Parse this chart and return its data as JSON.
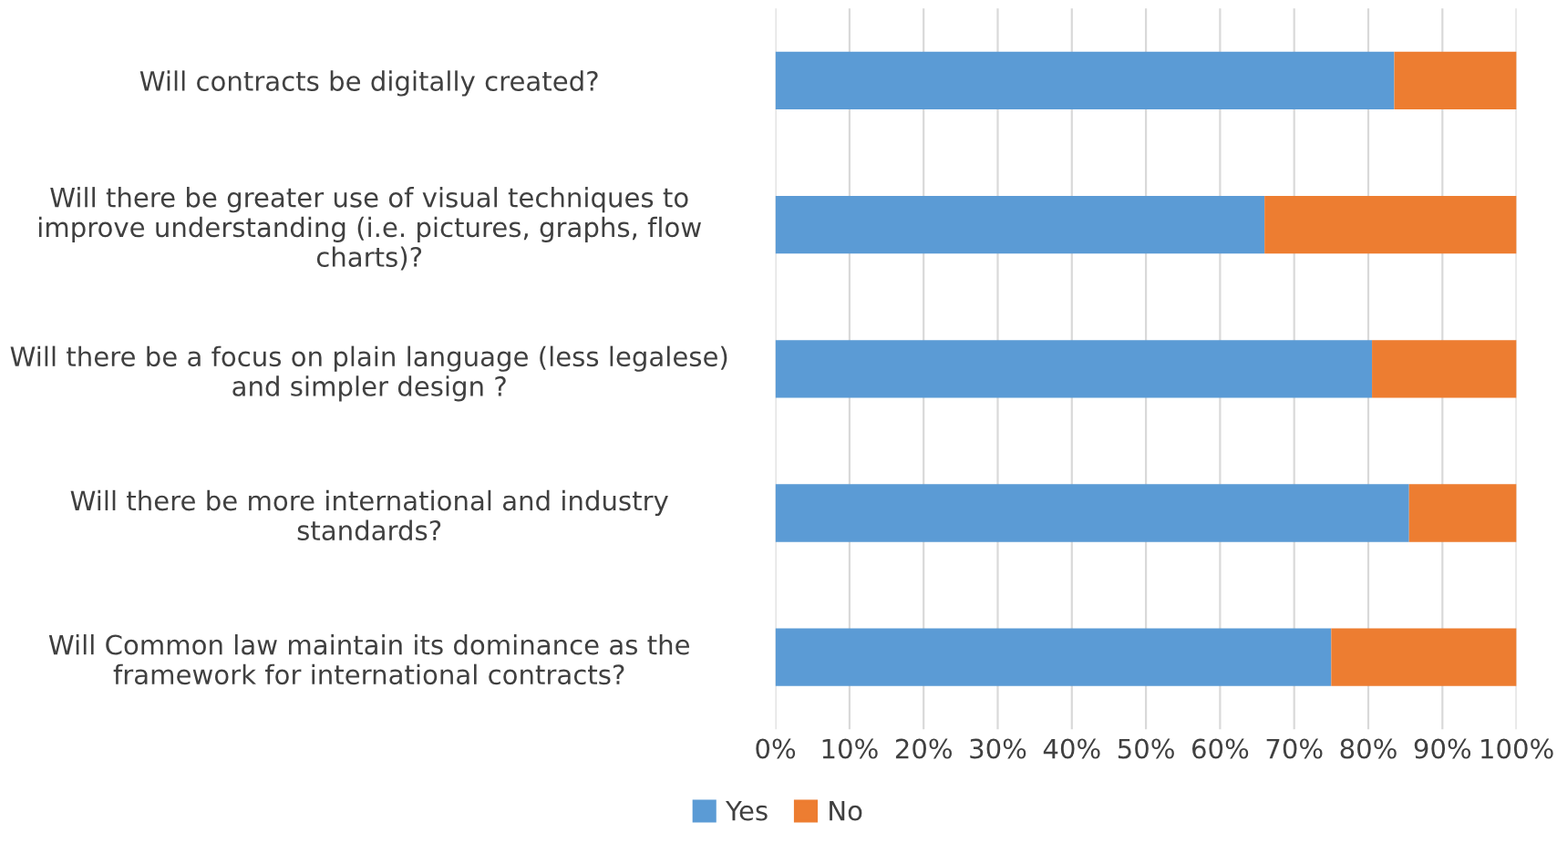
{
  "chart_data": {
    "type": "bar",
    "orientation": "horizontal",
    "stacked": true,
    "categories": [
      "Will contracts be digitally created?",
      "Will there be greater use of visual techniques to\nimprove understanding (i.e. pictures, graphs, flow\ncharts)?",
      "Will there be a focus on plain language (less legalese)\nand simpler design ?",
      "Will there be more international and industry\nstandards?",
      "Will Common law maintain its dominance as the\nframework for international contracts?"
    ],
    "series": [
      {
        "name": "Yes",
        "color": "#5b9bd5",
        "values": [
          83.5,
          66,
          80.5,
          85.5,
          75
        ]
      },
      {
        "name": "No",
        "color": "#ed7d31",
        "values": [
          16.5,
          34,
          19.5,
          14.5,
          25
        ]
      }
    ],
    "xlim": [
      0,
      100
    ],
    "xticks": [
      {
        "value": 0,
        "label": "0%"
      },
      {
        "value": 10,
        "label": "10%"
      },
      {
        "value": 20,
        "label": "20%"
      },
      {
        "value": 30,
        "label": "30%"
      },
      {
        "value": 40,
        "label": "40%"
      },
      {
        "value": 50,
        "label": "50%"
      },
      {
        "value": 60,
        "label": "60%"
      },
      {
        "value": 70,
        "label": "70%"
      },
      {
        "value": 80,
        "label": "80%"
      },
      {
        "value": 90,
        "label": "90%"
      },
      {
        "value": 100,
        "label": "100%"
      }
    ],
    "grid": "x",
    "legend": "bottom"
  }
}
